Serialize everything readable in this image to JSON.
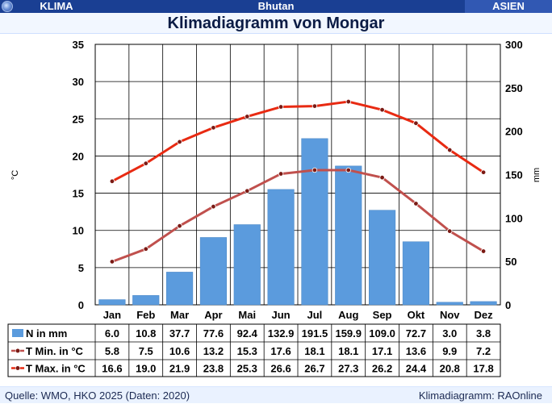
{
  "header": {
    "left_label": "KLIMA",
    "center_label": "Bhutan",
    "right_label": "ASIEN",
    "globe_icon": "globe-icon"
  },
  "title": "Klimadiagramm von Mongar",
  "footer": {
    "source": "Quelle: WMO, HKO 2025 (Daten: 2020)",
    "credit": "Klimadiagramm: RAOnline"
  },
  "colors": {
    "bar": "#5b9bdd",
    "tmin": "#c0504d",
    "tmax": "#e82a12",
    "grid": "#000000",
    "top_bar": "#1a3f93"
  },
  "chart_data": {
    "type": "bar",
    "categories": [
      "Jan",
      "Feb",
      "Mar",
      "Apr",
      "Mai",
      "Jun",
      "Jul",
      "Aug",
      "Sep",
      "Okt",
      "Nov",
      "Dez"
    ],
    "left_axis": {
      "label": "°C",
      "ylim": [
        0,
        35
      ],
      "ticks": [
        0,
        5,
        10,
        15,
        20,
        25,
        30,
        35
      ]
    },
    "right_axis": {
      "label": "mm",
      "ylim": [
        0,
        300
      ],
      "ticks": [
        0,
        50,
        100,
        150,
        200,
        250,
        300
      ]
    },
    "series": [
      {
        "name": "N in mm",
        "kind": "bar",
        "axis": "right",
        "color": "#5b9bdd",
        "values": [
          6.0,
          10.8,
          37.7,
          77.6,
          92.4,
          132.9,
          191.5,
          159.9,
          109.0,
          72.7,
          3.0,
          3.8
        ],
        "value_labels": [
          "6.0",
          "10.8",
          "37.7",
          "77.6",
          "92.4",
          "132.9",
          "191.5",
          "159.9",
          "109.0",
          "72.7",
          "3.0",
          "3.8"
        ]
      },
      {
        "name": "T Min. in °C",
        "kind": "line",
        "axis": "left",
        "color": "#c0504d",
        "values": [
          5.8,
          7.5,
          10.6,
          13.2,
          15.3,
          17.6,
          18.1,
          18.1,
          17.1,
          13.6,
          9.9,
          7.2
        ],
        "value_labels": [
          "5.8",
          "7.5",
          "10.6",
          "13.2",
          "15.3",
          "17.6",
          "18.1",
          "18.1",
          "17.1",
          "13.6",
          "9.9",
          "7.2"
        ]
      },
      {
        "name": "T Max. in °C",
        "kind": "line",
        "axis": "left",
        "color": "#e82a12",
        "values": [
          16.6,
          19.0,
          21.9,
          23.8,
          25.3,
          26.6,
          26.7,
          27.3,
          26.2,
          24.4,
          20.8,
          17.8
        ],
        "value_labels": [
          "16.6",
          "19.0",
          "21.9",
          "23.8",
          "25.3",
          "26.6",
          "26.7",
          "27.3",
          "26.2",
          "24.4",
          "20.8",
          "17.8"
        ]
      }
    ],
    "grid": true,
    "legend": "data table below chart"
  }
}
